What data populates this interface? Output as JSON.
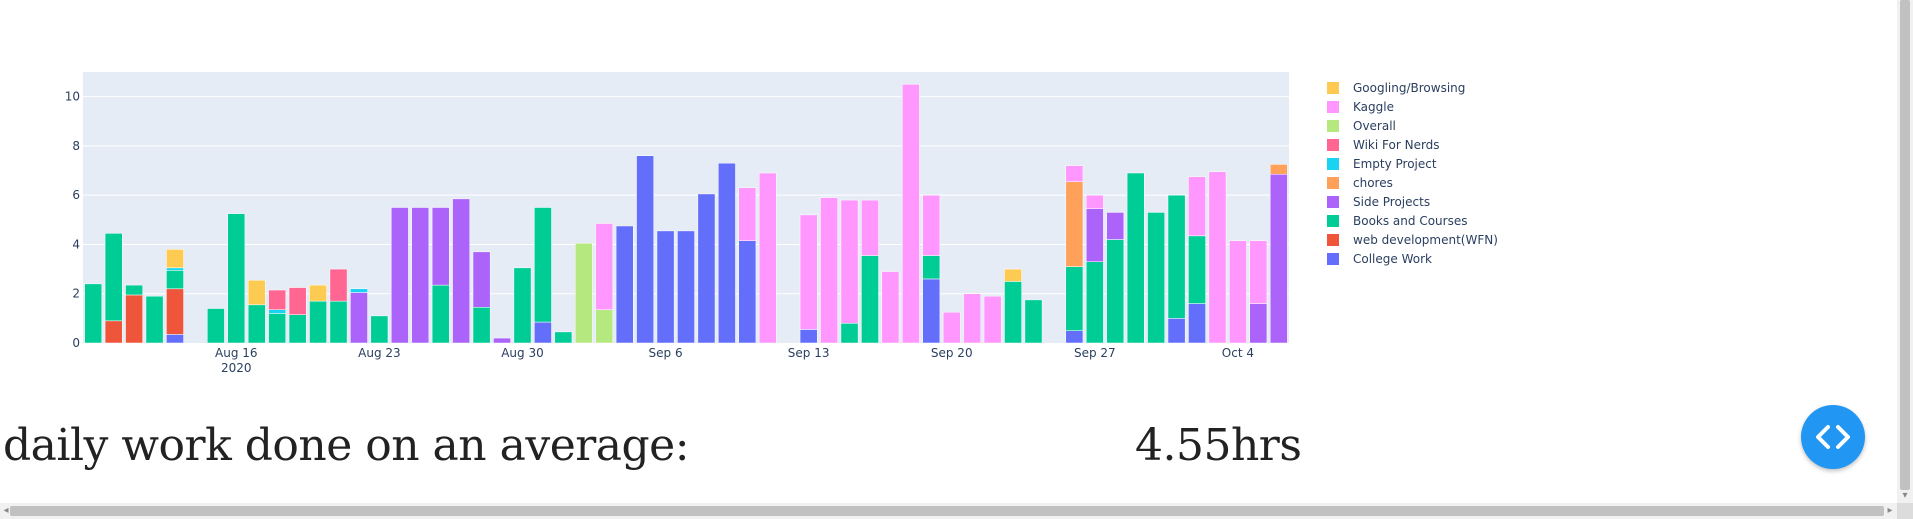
{
  "chart_data": {
    "type": "bar",
    "barmode": "stack",
    "grid": true,
    "legend_placement": "right",
    "ylim": [
      0,
      11
    ],
    "yticks": [
      0,
      2,
      4,
      6,
      8,
      10
    ],
    "xlim": [
      "2020-08-09",
      "2020-10-06"
    ],
    "xticks": [
      {
        "date": "2020-08-16",
        "label": "Aug 16",
        "sublabel": "2020"
      },
      {
        "date": "2020-08-23",
        "label": "Aug 23"
      },
      {
        "date": "2020-08-30",
        "label": "Aug 30"
      },
      {
        "date": "2020-09-06",
        "label": "Sep 6"
      },
      {
        "date": "2020-09-13",
        "label": "Sep 13"
      },
      {
        "date": "2020-09-20",
        "label": "Sep 20"
      },
      {
        "date": "2020-09-27",
        "label": "Sep 27"
      },
      {
        "date": "2020-10-04",
        "label": "Oct 4"
      }
    ],
    "series": [
      {
        "name": "College Work",
        "color": "#636efa",
        "values": {
          "2020-08-13": 0.35,
          "2020-08-31": 0.85,
          "2020-09-04": 4.75,
          "2020-09-05": 7.6,
          "2020-09-06": 4.55,
          "2020-09-07": 4.55,
          "2020-09-08": 6.05,
          "2020-09-09": 7.3,
          "2020-09-10": 4.15,
          "2020-09-13": 0.55,
          "2020-09-19": 2.6,
          "2020-09-26": 0.5,
          "2020-10-01": 1.0,
          "2020-10-02": 1.6
        }
      },
      {
        "name": "web development(WFN)",
        "color": "#ef553b",
        "values": {
          "2020-08-10": 0.9,
          "2020-08-11": 1.95,
          "2020-08-13": 1.85
        }
      },
      {
        "name": "Books and Courses",
        "color": "#00cc96",
        "values": {
          "2020-08-09": 2.4,
          "2020-08-10": 3.55,
          "2020-08-11": 0.4,
          "2020-08-12": 1.9,
          "2020-08-13": 0.75,
          "2020-08-15": 1.4,
          "2020-08-16": 5.25,
          "2020-08-17": 1.55,
          "2020-08-18": 1.2,
          "2020-08-19": 1.15,
          "2020-08-20": 1.7,
          "2020-08-21": 1.7,
          "2020-08-23": 1.1,
          "2020-08-26": 2.35,
          "2020-08-28": 1.45,
          "2020-08-30": 3.05,
          "2020-08-31": 4.65,
          "2020-09-01": 0.45,
          "2020-09-15": 0.8,
          "2020-09-16": 3.55,
          "2020-09-19": 0.95,
          "2020-09-23": 2.5,
          "2020-09-24": 1.75,
          "2020-09-26": 2.6,
          "2020-09-27": 3.3,
          "2020-09-28": 4.2,
          "2020-09-29": 6.9,
          "2020-09-30": 5.3,
          "2020-10-01": 5.0,
          "2020-10-02": 2.75
        }
      },
      {
        "name": "Side Projects",
        "color": "#ab63fa",
        "values": {
          "2020-08-22": 2.05,
          "2020-08-24": 5.5,
          "2020-08-25": 5.5,
          "2020-08-26": 3.15,
          "2020-08-27": 5.85,
          "2020-08-28": 2.25,
          "2020-08-29": 0.2,
          "2020-09-27": 2.15,
          "2020-09-28": 1.1,
          "2020-10-05": 1.6,
          "2020-10-06": 6.85
        }
      },
      {
        "name": "chores",
        "color": "#ffa15a",
        "values": {
          "2020-09-26": 3.45,
          "2020-10-06": 0.4
        }
      },
      {
        "name": "Empty Project",
        "color": "#19d3f3",
        "values": {
          "2020-08-13": 0.1,
          "2020-08-18": 0.15,
          "2020-08-22": 0.15
        }
      },
      {
        "name": "Wiki For Nerds",
        "color": "#ff6692",
        "values": {
          "2020-08-18": 0.8,
          "2020-08-19": 1.1,
          "2020-08-21": 1.3
        }
      },
      {
        "name": "Overall",
        "color": "#b6e880",
        "values": {
          "2020-09-02": 4.05,
          "2020-09-03": 1.35
        }
      },
      {
        "name": "Kaggle",
        "color": "#ff97ff",
        "values": {
          "2020-09-02": 0.0,
          "2020-09-03": 3.5,
          "2020-09-04": 0.0,
          "2020-09-10": 2.15,
          "2020-09-11": 6.9,
          "2020-09-13": 4.65,
          "2020-09-14": 5.9,
          "2020-09-15": 5.0,
          "2020-09-16": 2.25,
          "2020-09-17": 2.9,
          "2020-09-18": 10.5,
          "2020-09-19": 2.45,
          "2020-09-20": 1.25,
          "2020-09-21": 2.0,
          "2020-09-22": 1.9,
          "2020-09-26": 0.65,
          "2020-09-27": 0.55,
          "2020-10-02": 2.4,
          "2020-10-03": 6.95,
          "2020-10-04": 4.15,
          "2020-10-05": 2.55
        }
      },
      {
        "name": "Googling/Browsing",
        "color": "#fecb52",
        "values": {
          "2020-08-13": 0.75,
          "2020-08-17": 1.0,
          "2020-08-20": 0.65,
          "2020-09-23": 0.5
        }
      }
    ],
    "legend_order": [
      "Googling/Browsing",
      "Kaggle",
      "Overall",
      "Wiki For Nerds",
      "Empty Project",
      "chores",
      "Side Projects",
      "Books and Courses",
      "web development(WFN)",
      "College Work"
    ]
  },
  "summary": {
    "label": "daily work done on an average:",
    "value": "4.55hrs"
  },
  "fab": {
    "icon": "code-icon",
    "color": "#2196f3"
  },
  "scrollbar": {
    "left_arrow": "◂",
    "right_arrow": "▸",
    "down_arrow": "▾"
  }
}
